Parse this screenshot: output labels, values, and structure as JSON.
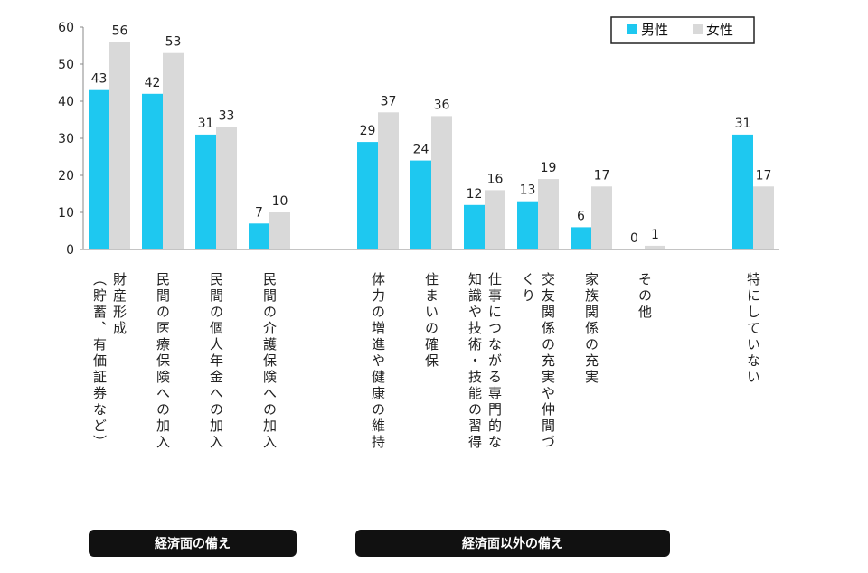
{
  "chart_data": {
    "type": "bar",
    "title": "",
    "xlabel": "",
    "ylabel": "",
    "ylim": [
      0,
      60
    ],
    "yticks": [
      0,
      10,
      20,
      30,
      40,
      50,
      60
    ],
    "grid": false,
    "legend_position": "top-right",
    "categories": [
      "財産形成（貯蓄、有価証券など）",
      "民間の医療保険への加入",
      "民間の個人年金への加入",
      "民間の介護保険への加入",
      "体力の増進や健康の維持",
      "住まいの確保",
      "仕事につながる専門的な知識や技術・技能の習得",
      "交友関係の充実や仲間づくり",
      "家族関係の充実",
      "その他",
      "特にしていない"
    ],
    "series": [
      {
        "name": "男性",
        "color": "#1ec8f0",
        "values": [
          43,
          42,
          31,
          7,
          29,
          24,
          12,
          13,
          6,
          0,
          31
        ]
      },
      {
        "name": "女性",
        "color": "#d9d9d9",
        "values": [
          56,
          53,
          33,
          10,
          37,
          36,
          16,
          19,
          17,
          1,
          17
        ]
      }
    ]
  },
  "category_label_lines": [
    [
      "財産形成",
      "（貯蓄、有価証券など）"
    ],
    [
      "民間の医療保険への加入"
    ],
    [
      "民間の個人年金への加入"
    ],
    [
      "民間の介護保険への加入"
    ],
    [
      "体力の増進や健康の維持"
    ],
    [
      "住まいの確保"
    ],
    [
      "仕事につながる専門的な",
      "知識や技術・技能の習得"
    ],
    [
      "交友関係の充実や仲間づ",
      "くり"
    ],
    [
      "家族関係の充実"
    ],
    [
      "その他"
    ],
    [
      "特にしていない"
    ]
  ],
  "groups": {
    "financial": "経済面の備え",
    "non_financial": "経済面以外の備え"
  }
}
